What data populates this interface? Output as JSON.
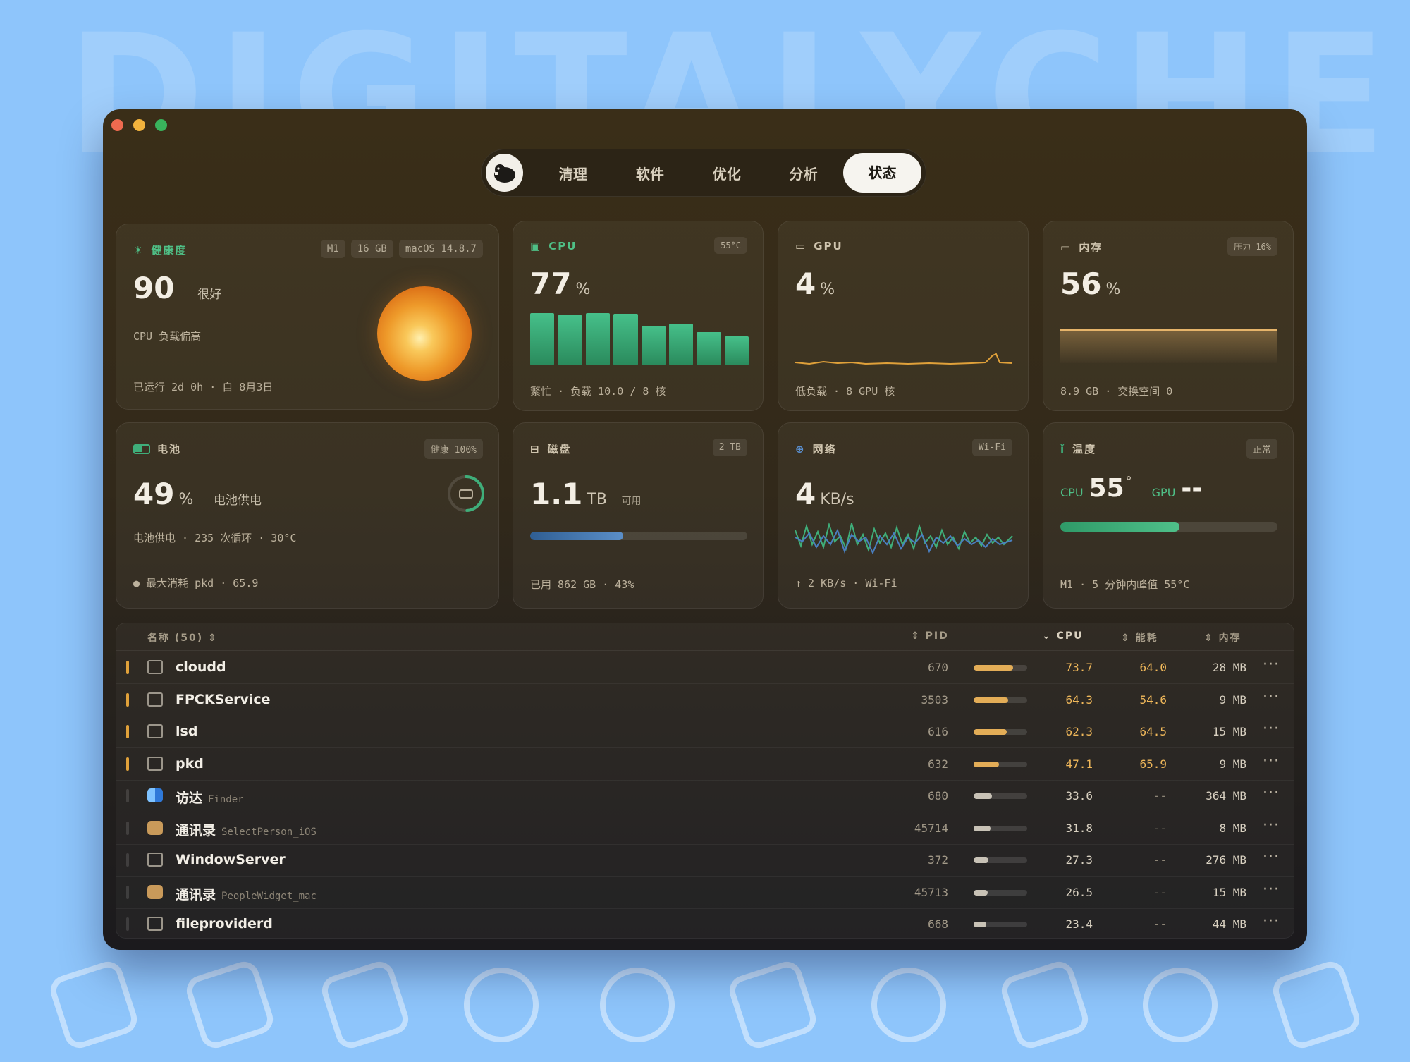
{
  "background": {
    "watermark": "DIGITALYCHEE",
    "icons": [
      "broom-icon",
      "usb-drive-icon",
      "backpack-icon",
      "nodes-icon",
      "command-icon",
      "book-icon",
      "glasses-icon",
      "trophy-icon",
      "lock-circle-icon",
      "tag-icon"
    ]
  },
  "colors": {
    "accent_green": "#3fae7a",
    "accent_orange": "#e0a13a",
    "close": "#ee6a4f",
    "minimize": "#f2b33d",
    "zoom": "#39b35c",
    "blue": "#3b6fa8"
  },
  "nav": {
    "logo_icon": "beaver-mascot-icon",
    "tabs": [
      "清理",
      "软件",
      "优化",
      "分析",
      "状态"
    ],
    "active": "状态"
  },
  "health": {
    "title": "健康度",
    "badges": [
      "M1",
      "16 GB",
      "macOS 14.8.7"
    ],
    "score": "90",
    "score_label": "很好",
    "note": "CPU 负载偏高",
    "uptime": "已运行 2d 0h · 自 8月3日"
  },
  "cpu": {
    "title": "CPU",
    "temp": "55°C",
    "value": "77",
    "unit": "%",
    "footer": "繁忙 · 负载 10.0 / 8 核",
    "core_loads": [
      0.98,
      0.94,
      0.98,
      0.96,
      0.74,
      0.78,
      0.62,
      0.54
    ]
  },
  "gpu": {
    "title": "GPU",
    "value": "4",
    "unit": "%",
    "footer": "低负载 · 8 GPU 核"
  },
  "memory": {
    "title": "内存",
    "pressure": "压力 16%",
    "value": "56",
    "unit": "%",
    "footer": "8.9 GB · 交换空间 0"
  },
  "battery": {
    "title": "电池",
    "health": "健康 100%",
    "value": "49",
    "unit": "%",
    "state": "电池供电",
    "detail": "电池供电 · 235 次循环 · 30°C",
    "top_consumer": "最大消耗 pkd · 65.9",
    "level": 0.49
  },
  "disk": {
    "title": "磁盘",
    "capacity": "2 TB",
    "value": "1.1",
    "unit": "TB",
    "unit_suffix": "可用",
    "footer": "已用 862 GB · 43%",
    "used_fraction": 0.43
  },
  "network": {
    "title": "网络",
    "type": "Wi-Fi",
    "value": "4",
    "unit": "KB/s",
    "footer": "↑ 2 KB/s · Wi-Fi"
  },
  "temperature": {
    "title": "温度",
    "status": "正常",
    "cpu_label": "CPU",
    "cpu_value": "55",
    "degree": "°",
    "gpu_label": "GPU",
    "gpu_value": "--",
    "footer": "M1 · 5 分钟内峰值 55°C",
    "level": 0.55
  },
  "table": {
    "headers": {
      "name": "名称 (50)",
      "pid": "PID",
      "cpu": "CPU",
      "energy": "能耗",
      "memory": "内存"
    },
    "rows": [
      {
        "name": "cloudd",
        "sub": "",
        "pid": "670",
        "cpu": "73.7",
        "energy": "64.0",
        "mem": "28 MB",
        "hot": true,
        "app": false
      },
      {
        "name": "FPCKService",
        "sub": "",
        "pid": "3503",
        "cpu": "64.3",
        "energy": "54.6",
        "mem": "9 MB",
        "hot": true,
        "app": false
      },
      {
        "name": "lsd",
        "sub": "",
        "pid": "616",
        "cpu": "62.3",
        "energy": "64.5",
        "mem": "15 MB",
        "hot": true,
        "app": false
      },
      {
        "name": "pkd",
        "sub": "",
        "pid": "632",
        "cpu": "47.1",
        "energy": "65.9",
        "mem": "9 MB",
        "hot": true,
        "app": false
      },
      {
        "name": "访达",
        "sub": "Finder",
        "pid": "680",
        "cpu": "33.6",
        "energy": "--",
        "mem": "364 MB",
        "hot": false,
        "app": "finder"
      },
      {
        "name": "通讯录",
        "sub": "SelectPerson_iOS",
        "pid": "45714",
        "cpu": "31.8",
        "energy": "--",
        "mem": "8 MB",
        "hot": false,
        "app": "contacts"
      },
      {
        "name": "WindowServer",
        "sub": "",
        "pid": "372",
        "cpu": "27.3",
        "energy": "--",
        "mem": "276 MB",
        "hot": false,
        "app": false
      },
      {
        "name": "通讯录",
        "sub": "PeopleWidget_mac",
        "pid": "45713",
        "cpu": "26.5",
        "energy": "--",
        "mem": "15 MB",
        "hot": false,
        "app": "contacts"
      },
      {
        "name": "fileproviderd",
        "sub": "",
        "pid": "668",
        "cpu": "23.4",
        "energy": "--",
        "mem": "44 MB",
        "hot": false,
        "app": false
      }
    ]
  }
}
